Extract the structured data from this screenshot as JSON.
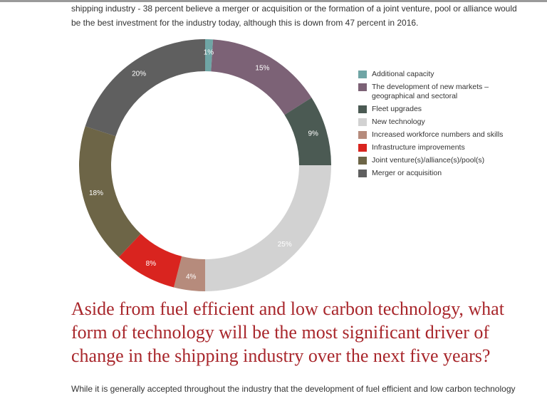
{
  "intro": {
    "line1": "shipping industry - 38 percent believe a merger or acquisition or the formation of a joint venture, pool or alliance would",
    "line2": "be the best investment for the industry today, although this is down from 47 percent in 2016."
  },
  "chart_data": {
    "type": "pie",
    "style": "donut",
    "legend_position": "right",
    "series": [
      {
        "name": "Additional capacity",
        "value": 1,
        "label": "1%",
        "color": "#6fa5a5"
      },
      {
        "name": "The development of new markets – geographical and sectoral",
        "value": 15,
        "label": "15%",
        "color": "#7c6276"
      },
      {
        "name": "Fleet upgrades",
        "value": 9,
        "label": "9%",
        "color": "#4b5a53"
      },
      {
        "name": "New technology",
        "value": 25,
        "label": "25%",
        "color": "#d2d2d2"
      },
      {
        "name": "Increased workforce numbers and skills",
        "value": 4,
        "label": "4%",
        "color": "#b68b7c"
      },
      {
        "name": "Infrastructure improvements",
        "value": 8,
        "label": "8%",
        "color": "#d9241f"
      },
      {
        "name": "Joint venture(s)/alliance(s)/pool(s)",
        "value": 18,
        "label": "18%",
        "color": "#6d6547"
      },
      {
        "name": "Merger or acquisition",
        "value": 20,
        "label": "20%",
        "color": "#5f5f5f"
      }
    ]
  },
  "legend": {
    "items": [
      {
        "line1": "Additional capacity",
        "line2": "",
        "color": "#6fa5a5"
      },
      {
        "line1": "The development of new markets –",
        "line2": "geographical and sectoral",
        "color": "#7c6276"
      },
      {
        "line1": "Fleet upgrades",
        "line2": "",
        "color": "#4b5a53"
      },
      {
        "line1": "New technology",
        "line2": "",
        "color": "#d2d2d2"
      },
      {
        "line1": "Increased workforce numbers and skills",
        "line2": "",
        "color": "#b68b7c"
      },
      {
        "line1": "Infrastructure improvements",
        "line2": "",
        "color": "#d9241f"
      },
      {
        "line1": "Joint venture(s)/alliance(s)/pool(s)",
        "line2": "",
        "color": "#6d6547"
      },
      {
        "line1": "Merger or acquisition",
        "line2": "",
        "color": "#5f5f5f"
      }
    ]
  },
  "question": {
    "line1": "Aside from fuel efficient and low carbon technology, what",
    "line2": "form of technology will be the most significant driver of",
    "line3": "change in the shipping industry over the next five years?"
  },
  "closing": {
    "text": "While it is generally accepted throughout the industry that the development of fuel efficient and low carbon technology"
  }
}
